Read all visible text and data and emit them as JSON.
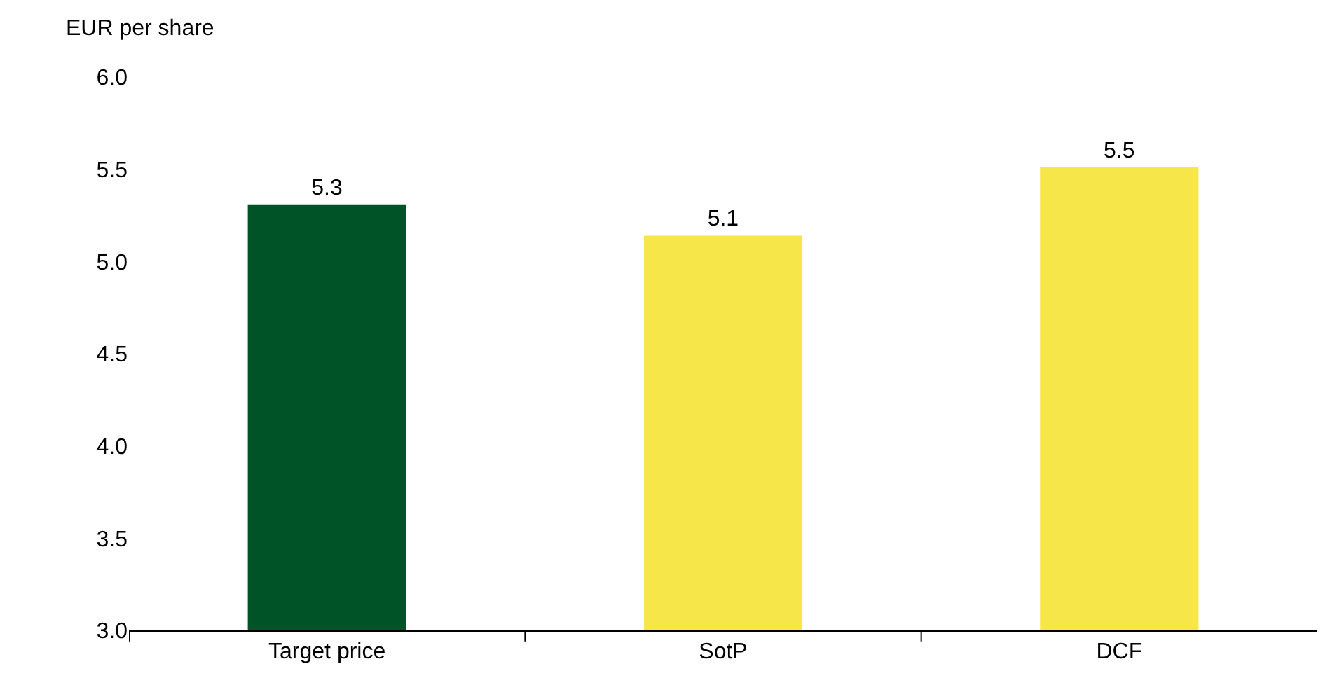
{
  "chart_data": {
    "type": "bar",
    "ylabel": "EUR per share",
    "categories": [
      "Target price",
      "SotP",
      "DCF"
    ],
    "values": [
      5.31,
      5.14,
      5.51
    ],
    "colors": [
      "#005227",
      "#f7e64a",
      "#f7e64a"
    ],
    "value_labels": [
      "5.3",
      "5.1",
      "5.5"
    ],
    "ylim": [
      3.0,
      6.0
    ],
    "yticks": [
      {
        "value": 3.0,
        "label": "3.0"
      },
      {
        "value": 3.5,
        "label": "3.5"
      },
      {
        "value": 4.0,
        "label": "4.0"
      },
      {
        "value": 4.5,
        "label": "4.5"
      },
      {
        "value": 5.0,
        "label": "5.0"
      },
      {
        "value": 5.5,
        "label": "5.5"
      },
      {
        "value": 6.0,
        "label": "6.0"
      }
    ],
    "tick_labels": "xy"
  }
}
